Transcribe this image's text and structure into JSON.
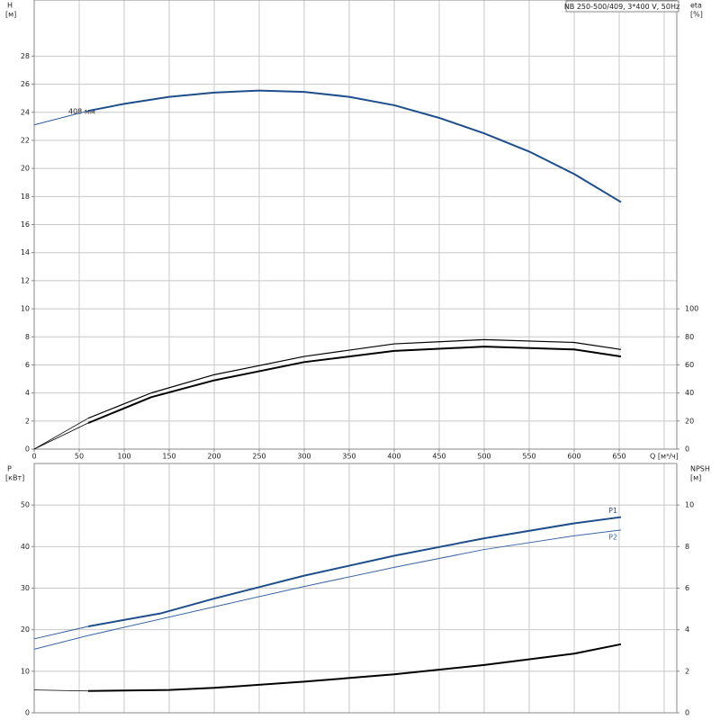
{
  "chart_data": [
    {
      "type": "line",
      "title": "NB 250-500/409, 3*400 V, 50Hz",
      "ylabel": "H",
      "yunit": "[м]",
      "y2label": "eta",
      "y2unit": "[%]",
      "xlabel": "Q [м³/ч]",
      "annotation": "408 мм",
      "xlim": [
        0,
        714
      ],
      "xticks": [
        0,
        50,
        100,
        150,
        200,
        250,
        300,
        350,
        400,
        450,
        500,
        550,
        600,
        650
      ],
      "xgrid": [
        0,
        50,
        100,
        150,
        200,
        250,
        300,
        350,
        400,
        450,
        500,
        550,
        600,
        650,
        700
      ],
      "ylim": [
        0,
        32
      ],
      "yticks": [
        0,
        2,
        4,
        6,
        8,
        10,
        12,
        14,
        16,
        18,
        20,
        22,
        24,
        26,
        28
      ],
      "y2lim": [
        0,
        320
      ],
      "y2ticks": [
        0,
        20,
        40,
        60,
        80,
        100
      ],
      "grid": true,
      "series": [
        {
          "color": "#2b5a9b",
          "width": 1,
          "x": [
            0,
            60
          ],
          "values": [
            23.1,
            24.1
          ]
        },
        {
          "color": "#1f4e8c",
          "width": 2,
          "x": [
            60,
            100,
            150,
            200,
            250,
            300,
            350,
            400,
            450,
            500,
            550,
            600,
            652
          ],
          "values": [
            24.1,
            24.6,
            25.1,
            25.4,
            25.55,
            25.45,
            25.1,
            24.5,
            23.6,
            22.5,
            21.2,
            19.6,
            17.6
          ]
        },
        {
          "color": "#000000",
          "width": 0.8,
          "axis": "y2",
          "x": [
            0,
            60
          ],
          "values": [
            0,
            22
          ]
        },
        {
          "color": "#000000",
          "width": 0.8,
          "axis": "y2",
          "x": [
            0,
            60
          ],
          "values": [
            0,
            18.6
          ]
        },
        {
          "color": "#000000",
          "width": 1.2,
          "axis": "y2",
          "x": [
            60,
            130,
            200,
            300,
            400,
            500,
            600,
            652
          ],
          "values": [
            22,
            40,
            53,
            66,
            75,
            78,
            76,
            71
          ]
        },
        {
          "color": "#000000",
          "width": 2,
          "axis": "y2",
          "x": [
            60,
            130,
            200,
            300,
            400,
            500,
            600,
            652
          ],
          "values": [
            18.6,
            37,
            49,
            62,
            70,
            73,
            71,
            66
          ]
        }
      ]
    },
    {
      "type": "line",
      "ylabel": "P",
      "yunit": "[кВт]",
      "y2label": "NPSH",
      "y2unit": "[м]",
      "xlim": [
        0,
        714
      ],
      "xgrid": [
        0,
        50,
        100,
        150,
        200,
        250,
        300,
        350,
        400,
        450,
        500,
        550,
        600,
        650,
        700
      ],
      "ylim": [
        0,
        60
      ],
      "yticks": [
        0,
        10,
        20,
        30,
        40,
        50
      ],
      "y2lim": [
        0,
        12
      ],
      "y2ticks": [
        0,
        2,
        4,
        6,
        8,
        10
      ],
      "grid": true,
      "series": [
        {
          "color": "#2b5a9b",
          "width": 1,
          "x": [
            0,
            60
          ],
          "values": [
            17.8,
            20.8
          ]
        },
        {
          "name": "P1",
          "color": "#1f4e8c",
          "width": 2,
          "x": [
            60,
            140,
            200,
            300,
            400,
            500,
            600,
            652
          ],
          "values": [
            20.8,
            23.9,
            27.5,
            33,
            37.8,
            42,
            45.6,
            47.1
          ]
        },
        {
          "name": "P2",
          "color": "#3a66a8",
          "width": 1,
          "x": [
            0,
            60,
            200,
            300,
            400,
            500,
            600,
            652
          ],
          "values": [
            15.3,
            18.6,
            25.5,
            30.4,
            35,
            39.3,
            42.6,
            44
          ]
        },
        {
          "color": "#000000",
          "width": 0.8,
          "axis": "y2",
          "x": [
            0,
            60
          ],
          "values": [
            1.1,
            1.05
          ]
        },
        {
          "color": "#000000",
          "width": 2,
          "axis": "y2",
          "x": [
            60,
            150,
            200,
            300,
            400,
            500,
            600,
            652
          ],
          "values": [
            1.05,
            1.1,
            1.2,
            1.5,
            1.85,
            2.3,
            2.85,
            3.3
          ]
        }
      ]
    }
  ]
}
